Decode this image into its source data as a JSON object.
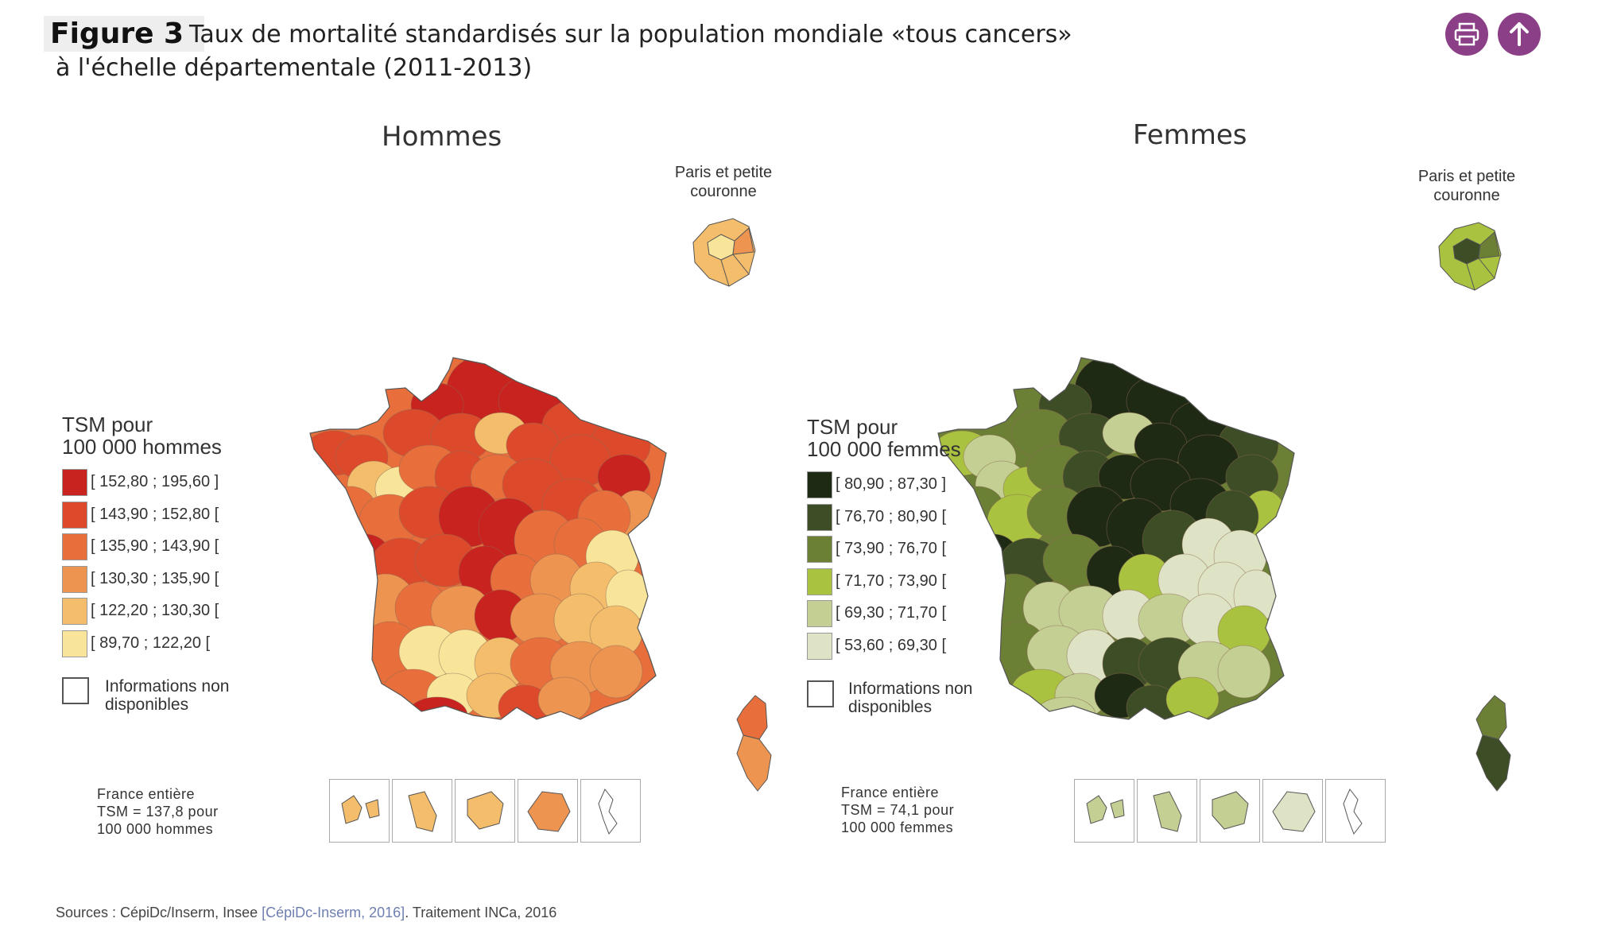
{
  "figure_label": "Figure 3",
  "title_line1": "Taux de mortalité standardisés sur la population mondiale «tous cancers»",
  "title_line2": "à l'échelle départementale (2011-2013)",
  "buttons": {
    "print_icon": "printer-icon",
    "up_icon": "arrow-up-icon",
    "color": "#8b3f86"
  },
  "maps": [
    {
      "title": "Hommes",
      "inset_title": "Paris et petite couronne",
      "legend_title_1": "TSM pour",
      "legend_title_2": "100 000 hommes",
      "classes": [
        {
          "label": "[ 152,80 ; 195,60 ]",
          "color": "#c8231f"
        },
        {
          "label": "[ 143,90 ; 152,80 [",
          "color": "#dd4a2b"
        },
        {
          "label": "[ 135,90 ; 143,90 [",
          "color": "#e86f3b"
        },
        {
          "label": "[ 130,30 ; 135,90 [",
          "color": "#ee9451"
        },
        {
          "label": "[ 122,20 ; 130,30 [",
          "color": "#f4bd6c"
        },
        {
          "label": "[ 89,70 ; 122,20 [",
          "color": "#f9e59a"
        }
      ],
      "na_label_1": "Informations non",
      "na_label_2": "disponibles",
      "france_1": "France entière",
      "france_2": "TSM = 137,8 pour",
      "france_3": "100 000 hommes"
    },
    {
      "title": "Femmes",
      "inset_title": "Paris et petite couronne",
      "legend_title_1": "TSM pour",
      "legend_title_2": "100 000 femmes",
      "classes": [
        {
          "label": "[ 80,90 ; 87,30 ]",
          "color": "#1f2a14"
        },
        {
          "label": "[ 76,70 ; 80,90 [",
          "color": "#3d4d25"
        },
        {
          "label": "[ 73,90 ; 76,70 [",
          "color": "#6b7f35"
        },
        {
          "label": "[ 71,70 ; 73,90 [",
          "color": "#a9c23f"
        },
        {
          "label": "[ 69,30 ; 71,70 [",
          "color": "#c3cf93"
        },
        {
          "label": "[ 53,60 ; 69,30 [",
          "color": "#dfe3c5"
        }
      ],
      "na_label_1": "Informations non",
      "na_label_2": "disponibles",
      "france_1": "France entière",
      "france_2": "TSM = 74,1 pour",
      "france_3": "100 000 femmes"
    }
  ],
  "sources_prefix": "Sources : CépiDc/Inserm, Insee ",
  "sources_link": "[CépiDc-Inserm, 2016]",
  "sources_suffix": ". Traitement INCa, 2016"
}
